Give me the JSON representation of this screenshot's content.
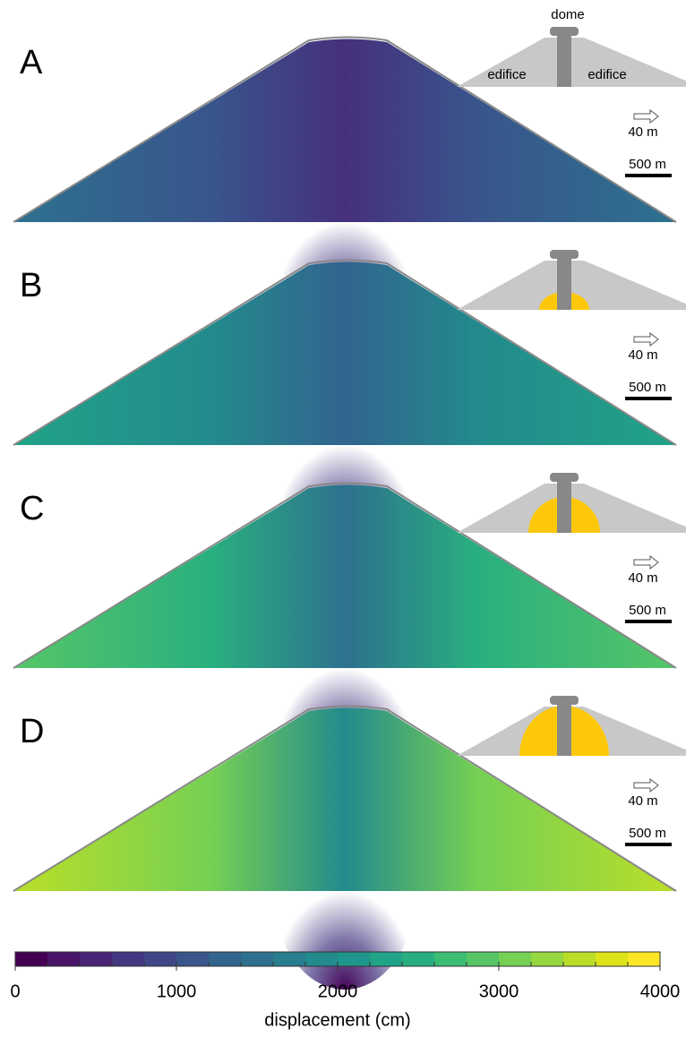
{
  "panels": [
    {
      "label": "A",
      "inset": {
        "top": "dome",
        "left": "edifice",
        "right": "edifice"
      },
      "arrow_scale": "40 m",
      "length_scale": "500 m"
    },
    {
      "label": "B",
      "arrow_scale": "40 m",
      "length_scale": "500 m"
    },
    {
      "label": "C",
      "arrow_scale": "40 m",
      "length_scale": "500 m"
    },
    {
      "label": "D",
      "arrow_scale": "40 m",
      "length_scale": "500 m"
    }
  ],
  "colorbar": {
    "label": "displacement (cm)",
    "lim": [
      0,
      4000
    ],
    "ticks": [
      0,
      1000,
      2000,
      3000,
      4000
    ],
    "colors": [
      "#440154",
      "#481467",
      "#482576",
      "#453781",
      "#3f4788",
      "#39558c",
      "#32648e",
      "#2d718e",
      "#287d8e",
      "#238a8d",
      "#1f968b",
      "#20a386",
      "#29af7f",
      "#3dbc74",
      "#56c667",
      "#75d054",
      "#95d840",
      "#bade28",
      "#dde318",
      "#fde725"
    ]
  }
}
